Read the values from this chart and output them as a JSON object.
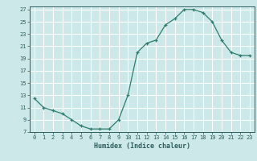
{
  "x": [
    0,
    1,
    2,
    3,
    4,
    5,
    6,
    7,
    8,
    9,
    10,
    11,
    12,
    13,
    14,
    15,
    16,
    17,
    18,
    19,
    20,
    21,
    22,
    23
  ],
  "y": [
    12.5,
    11.0,
    10.5,
    10.0,
    9.0,
    8.0,
    7.5,
    7.5,
    7.5,
    9.0,
    13.0,
    20.0,
    21.5,
    22.0,
    24.5,
    25.5,
    27.0,
    27.0,
    26.5,
    25.0,
    22.0,
    20.0,
    19.5,
    19.5
  ],
  "xlabel": "Humidex (Indice chaleur)",
  "xlim": [
    -0.5,
    23.5
  ],
  "ylim": [
    7,
    27.5
  ],
  "yticks": [
    7,
    9,
    11,
    13,
    15,
    17,
    19,
    21,
    23,
    25,
    27
  ],
  "xticks": [
    0,
    1,
    2,
    3,
    4,
    5,
    6,
    7,
    8,
    9,
    10,
    11,
    12,
    13,
    14,
    15,
    16,
    17,
    18,
    19,
    20,
    21,
    22,
    23
  ],
  "line_color": "#2e7d6e",
  "marker": "+",
  "bg_color": "#cce8e8",
  "grid_color": "#ffffff",
  "label_color": "#2e5d5d",
  "tick_fontsize": 5.0,
  "xlabel_fontsize": 6.0
}
